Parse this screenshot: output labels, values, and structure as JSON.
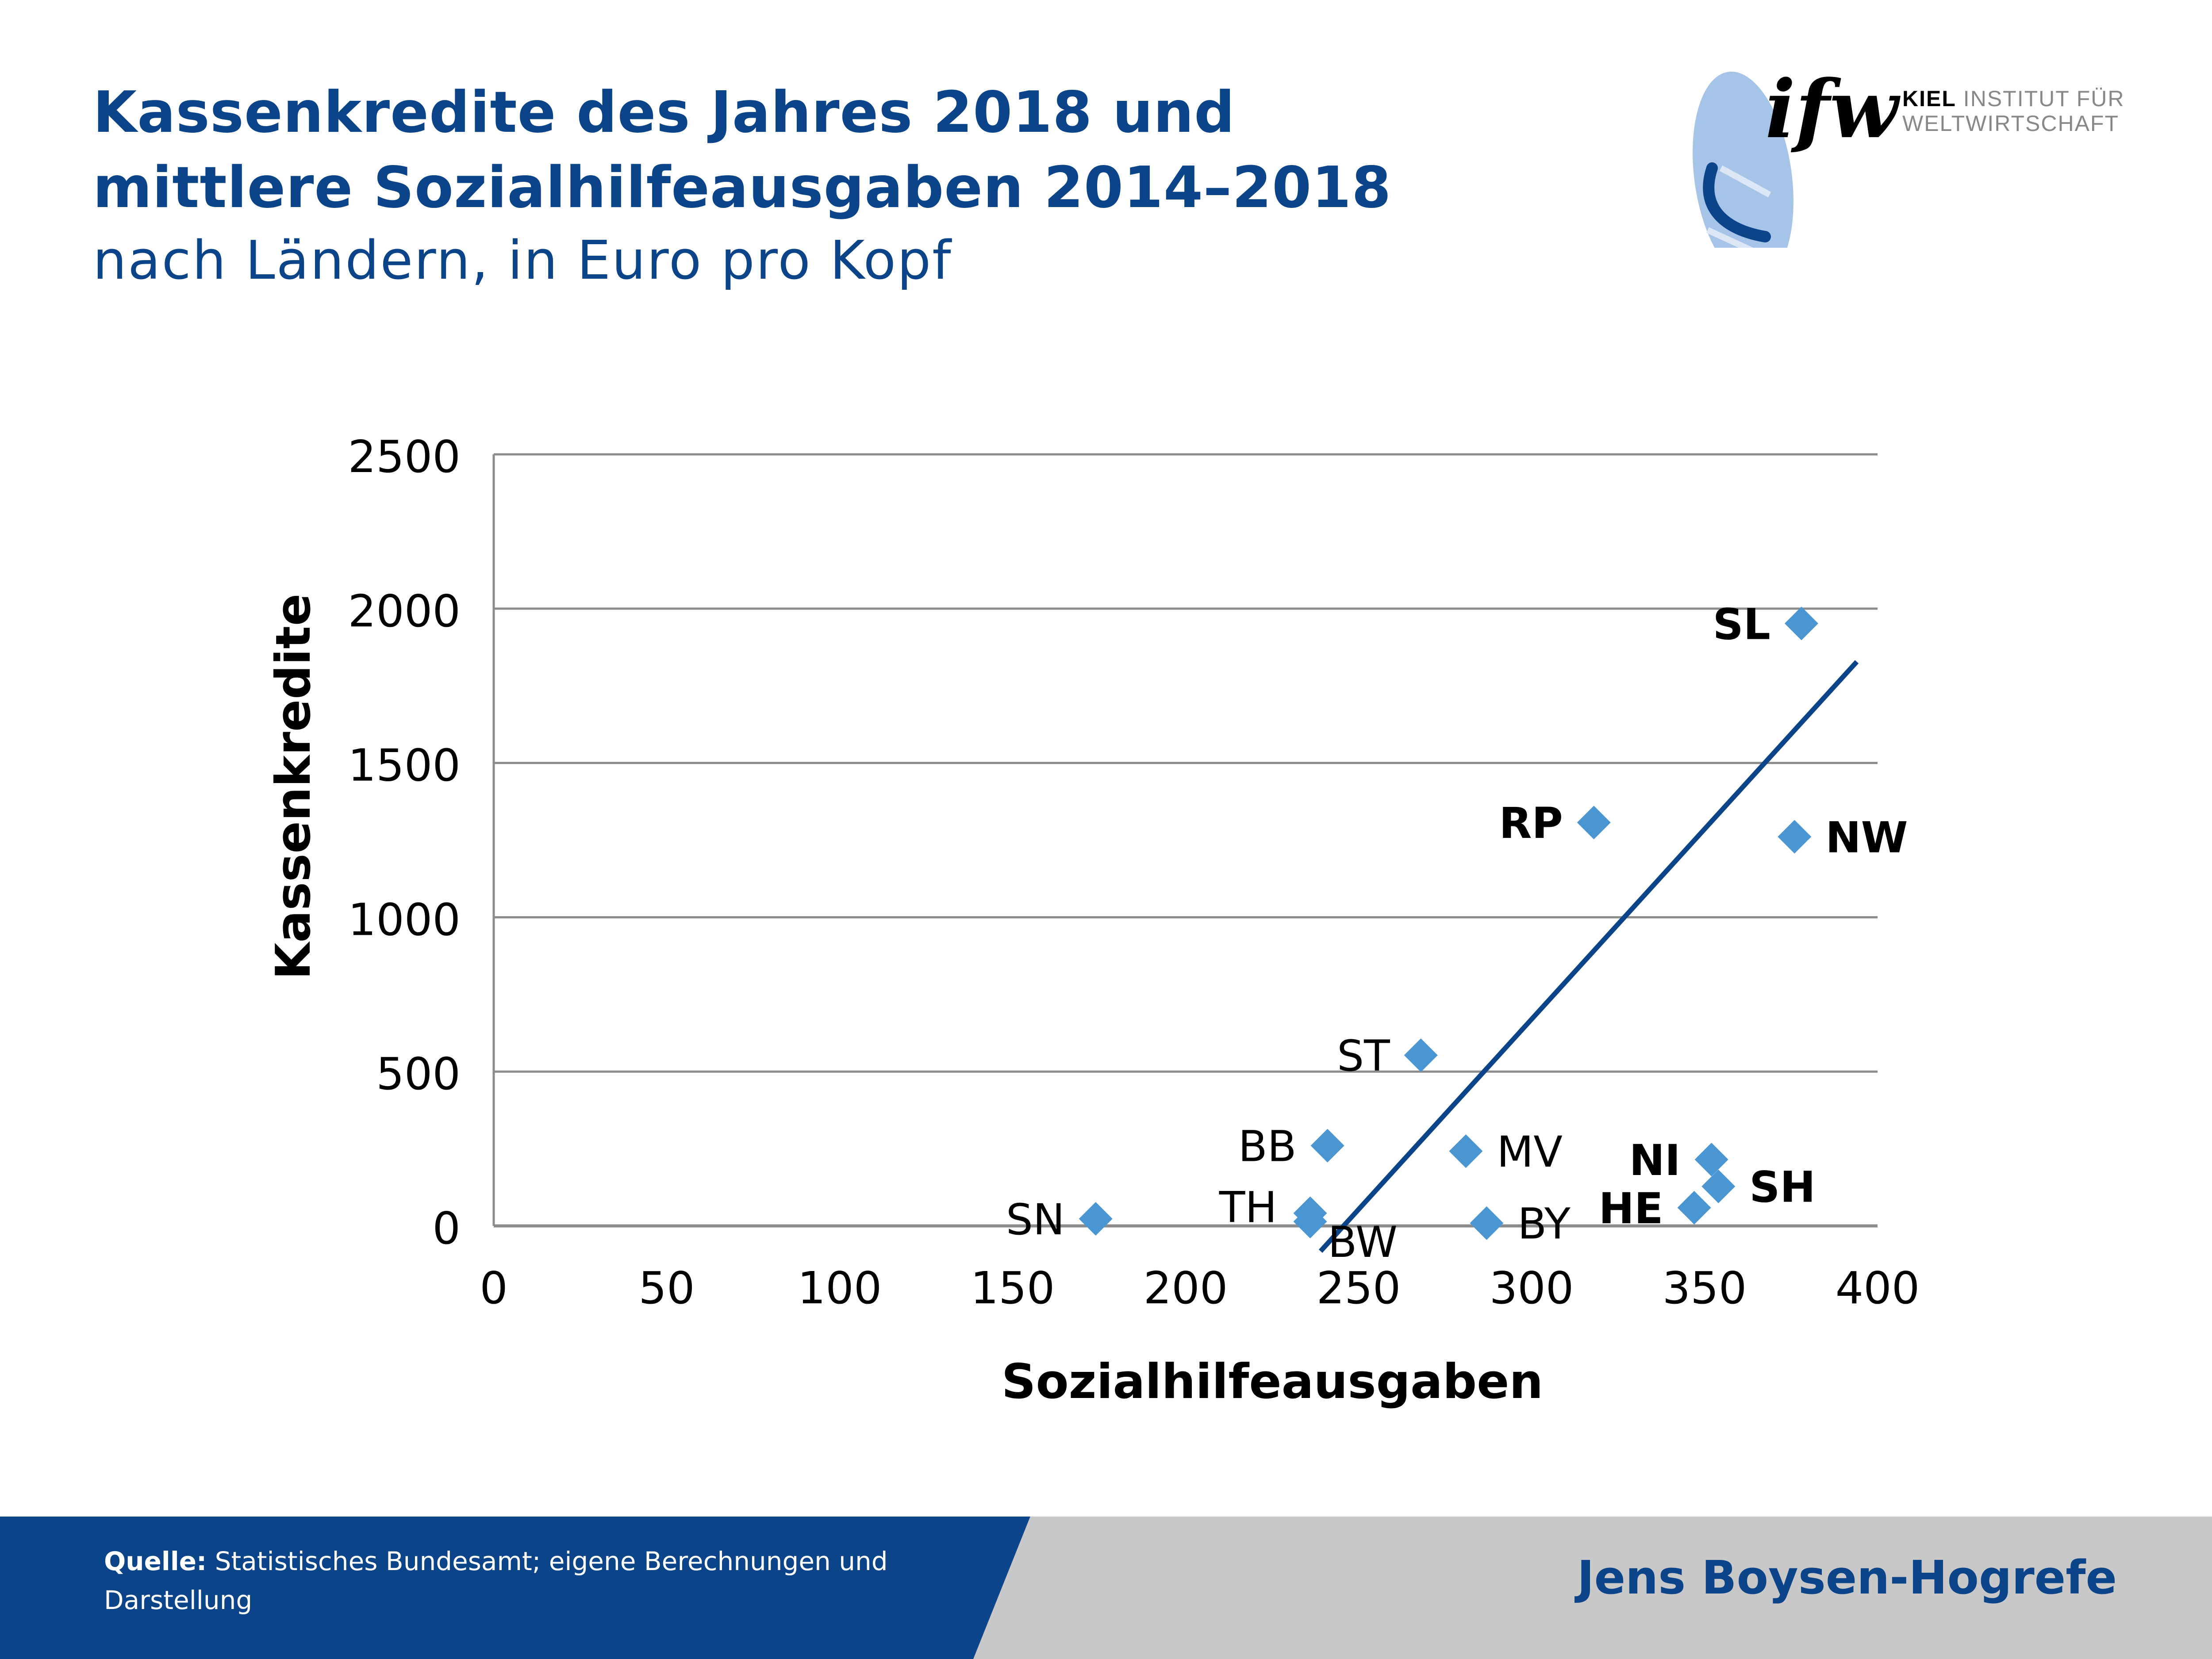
{
  "header": {
    "title_line1": "Kassenkredite des Jahres 2018 und",
    "title_line2": "mittlere Sozialhilfeausgaben 2014–2018",
    "subtitle": "nach Ländern, in Euro pro Kopf"
  },
  "logo": {
    "mark": "ifw",
    "name_bold": "KIEL",
    "name_line1": " INSTITUT FÜR",
    "name_line2": "WELTWIRTSCHAFT"
  },
  "footer": {
    "source_label": "Quelle:",
    "source_text": "Statistisches Bundesamt; eigene Berechnungen und Darstellung",
    "author": "Jens Boysen-Hogrefe"
  },
  "colors": {
    "brand": "#0c4489",
    "marker": "#4a96d3",
    "trendline": "#0c4489",
    "grid": "#8c8c8c",
    "footer_gray": "#c8c8c8"
  },
  "chart_data": {
    "type": "scatter",
    "title": "",
    "xlabel": "Sozialhilfeausgaben",
    "ylabel": "Kassenkredite",
    "xlim": [
      0,
      400
    ],
    "ylim": [
      0,
      2500
    ],
    "x_ticks": [
      0,
      50,
      100,
      150,
      200,
      250,
      300,
      350,
      400
    ],
    "y_ticks": [
      0,
      500,
      1000,
      1500,
      2000,
      2500
    ],
    "grid": "horizontal",
    "legend": "none",
    "points": [
      {
        "label": "SN",
        "x": 174,
        "y": 23,
        "bold": false,
        "label_side": "left"
      },
      {
        "label": "TH",
        "x": 236,
        "y": 41,
        "bold": false,
        "label_side": "upper-left"
      },
      {
        "label": "BW",
        "x": 236,
        "y": 14,
        "bold": false,
        "label_side": "lower-right"
      },
      {
        "label": "BB",
        "x": 241,
        "y": 260,
        "bold": false,
        "label_side": "left"
      },
      {
        "label": "ST",
        "x": 268,
        "y": 553,
        "bold": false,
        "label_side": "left"
      },
      {
        "label": "MV",
        "x": 281,
        "y": 242,
        "bold": false,
        "label_side": "right"
      },
      {
        "label": "BY",
        "x": 287,
        "y": 9,
        "bold": false,
        "label_side": "right"
      },
      {
        "label": "RP",
        "x": 318,
        "y": 1307,
        "bold": true,
        "label_side": "left"
      },
      {
        "label": "HE",
        "x": 347,
        "y": 59,
        "bold": true,
        "label_side": "left"
      },
      {
        "label": "NI",
        "x": 352,
        "y": 215,
        "bold": true,
        "label_side": "left"
      },
      {
        "label": "SH",
        "x": 354,
        "y": 128,
        "bold": true,
        "label_side": "right"
      },
      {
        "label": "NW",
        "x": 376,
        "y": 1261,
        "bold": true,
        "label_side": "right"
      },
      {
        "label": "SL",
        "x": 378,
        "y": 1952,
        "bold": true,
        "label_side": "left"
      }
    ],
    "trendline": {
      "x": [
        239,
        394
      ],
      "y": [
        -82,
        1828
      ]
    }
  }
}
